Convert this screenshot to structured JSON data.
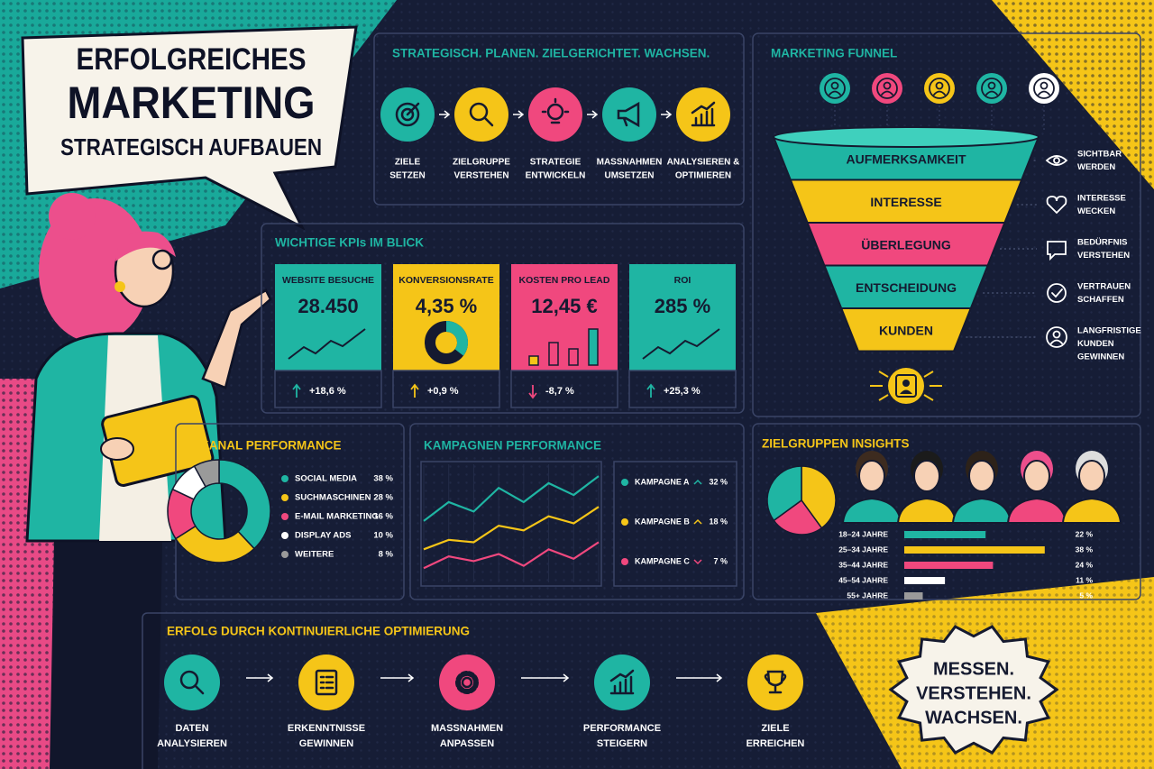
{
  "header": {
    "title_lines": [
      "ERFOLGREICHES",
      "MARKETING",
      "STRATEGISCH AUFBAUEN"
    ]
  },
  "strategy": {
    "title": "STRATEGISCH. PLANEN. ZIELGERICHTET. WACHSEN.",
    "steps": [
      [
        "ZIELE",
        "SETZEN"
      ],
      [
        "ZIELGRUPPE",
        "VERSTEHEN"
      ],
      [
        "STRATEGIE",
        "ENTWICKELN"
      ],
      [
        "MASSNAHMEN",
        "UMSETZEN"
      ],
      [
        "ANALYSIEREN &",
        "OPTIMIEREN"
      ]
    ]
  },
  "kpis": {
    "title": "WICHTIGE KPIs IM BLICK",
    "cards": [
      {
        "label": "WEBSITE BESUCHE",
        "value": "28.450",
        "change": "+18,6 %"
      },
      {
        "label": "KONVERSIONSRATE",
        "value": "4,35 %",
        "change": "+0,9 %"
      },
      {
        "label": "KOSTEN PRO LEAD",
        "value": "12,45 €",
        "change": "-8,7 %"
      },
      {
        "label": "ROI",
        "value": "285 %",
        "change": "+25,3 %"
      }
    ]
  },
  "funnel": {
    "title": "MARKETING FUNNEL",
    "stages": [
      "AUFMERKSAMKEIT",
      "INTERESSE",
      "ÜBERLEGUNG",
      "ENTSCHEIDUNG",
      "KUNDEN"
    ],
    "notes": [
      [
        "SICHTBAR",
        "WERDEN"
      ],
      [
        "INTERESSE",
        "WECKEN"
      ],
      [
        "BEDÜRFNIS",
        "VERSTEHEN"
      ],
      [
        "VERTRAUEN",
        "SCHAFFEN"
      ],
      [
        "LANGFRISTIGE",
        "KUNDEN",
        "GEWINNEN"
      ]
    ]
  },
  "chart_data": [
    {
      "type": "donut",
      "title": "KANAL PERFORMANCE",
      "categories": [
        "SOCIAL MEDIA",
        "SUCHMASCHINEN",
        "E-MAIL MARKETING",
        "DISPLAY ADS",
        "WEITERE"
      ],
      "values": [
        38,
        28,
        16,
        10,
        8
      ],
      "value_labels": [
        "38 %",
        "28 %",
        "16 %",
        "10 %",
        "8 %"
      ],
      "colors": [
        "#1fb5a3",
        "#f5c518",
        "#f0487e",
        "#ffffff",
        "#9a9a9a"
      ]
    },
    {
      "type": "line",
      "title": "KAMPAGNEN PERFORMANCE",
      "categories": [
        null,
        null,
        null,
        null,
        null,
        null,
        null,
        null
      ],
      "ylim": [
        0,
        100
      ],
      "series": [
        {
          "name": "KAMPAGNE A",
          "color": "#1fb5a3",
          "values": [
            52,
            68,
            60,
            80,
            68,
            84,
            74,
            90
          ],
          "trend_label": "32 %",
          "trend": "up"
        },
        {
          "name": "KAMPAGNE B",
          "color": "#f5c518",
          "values": [
            28,
            36,
            34,
            48,
            44,
            56,
            50,
            64
          ],
          "trend_label": "18 %",
          "trend": "up"
        },
        {
          "name": "KAMPAGNE C",
          "color": "#f0487e",
          "values": [
            12,
            22,
            18,
            24,
            14,
            28,
            20,
            34
          ],
          "trend_label": "7 %",
          "trend": "down"
        }
      ]
    },
    {
      "type": "pie",
      "title": "ZIELGRUPPEN INSIGHTS",
      "values": [
        40,
        25,
        35
      ],
      "colors": [
        "#f5c518",
        "#f0487e",
        "#1fb5a3"
      ]
    },
    {
      "type": "hbar",
      "categories": [
        "18–24 JAHRE",
        "25–34 JAHRE",
        "35–44 JAHRE",
        "45–54 JAHRE",
        "55+ JAHRE"
      ],
      "values": [
        22,
        38,
        24,
        11,
        5
      ],
      "value_labels": [
        "22 %",
        "38 %",
        "24 %",
        "11 %",
        "5 %"
      ],
      "colors": [
        "#1fb5a3",
        "#f5c518",
        "#f0487e",
        "#ffffff",
        "#9a9a9a"
      ],
      "xlim": [
        0,
        40
      ]
    }
  ],
  "optimization": {
    "title": "ERFOLG DURCH KONTINUIERLICHE OPTIMIERUNG",
    "steps": [
      [
        "DATEN",
        "ANALYSIEREN"
      ],
      [
        "ERKENNTNISSE",
        "GEWINNEN"
      ],
      [
        "MASSNAHMEN",
        "ANPASSEN"
      ],
      [
        "PERFORMANCE",
        "STEIGERN"
      ],
      [
        "ZIELE",
        "ERREICHEN"
      ]
    ]
  },
  "badge": {
    "lines": [
      "MESSEN.",
      "VERSTEHEN.",
      "WACHSEN."
    ]
  }
}
